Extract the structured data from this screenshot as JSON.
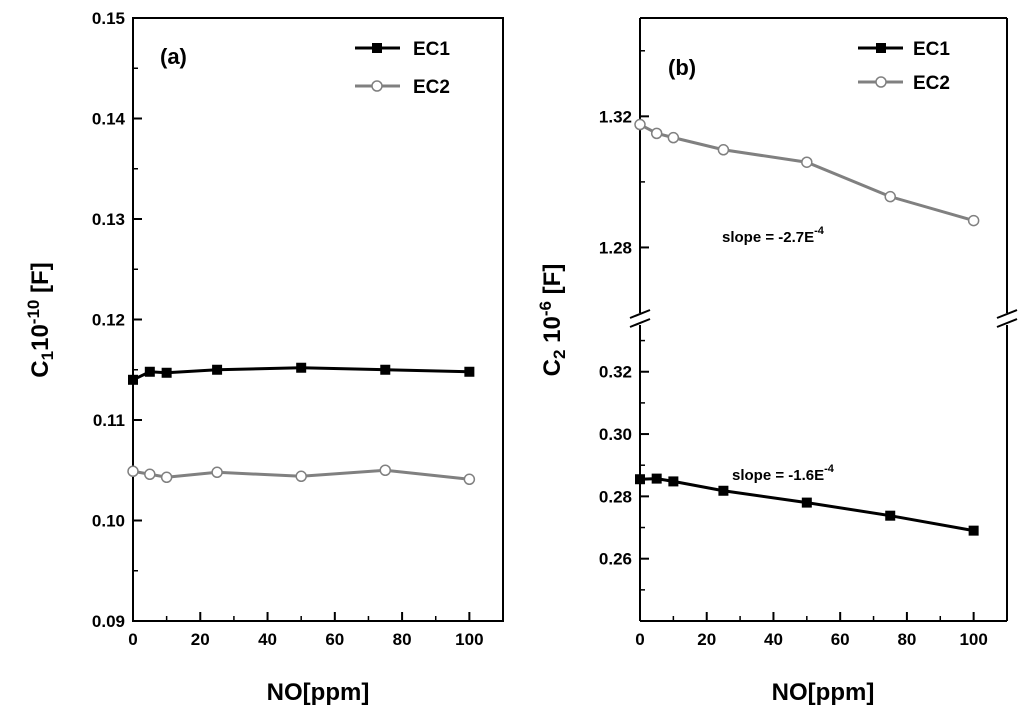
{
  "chart_data": [
    {
      "type": "line",
      "panel_label": "(a)",
      "xlabel": "NO[ppm]",
      "ylabel": {
        "base": "C",
        "sub": "1",
        "mid": "10",
        "sup": "-10",
        "unit": " [F]"
      },
      "xlim": [
        0,
        110
      ],
      "ylim": [
        0.09,
        0.15
      ],
      "x_ticks": [
        "0",
        "20",
        "40",
        "60",
        "80",
        "100"
      ],
      "y_ticks": [
        "0.09",
        "0.10",
        "0.11",
        "0.12",
        "0.13",
        "0.14",
        "0.15"
      ],
      "x": [
        0,
        5,
        10,
        25,
        50,
        75,
        100
      ],
      "series": [
        {
          "name": "EC1",
          "values": [
            0.114,
            0.1148,
            0.1147,
            0.115,
            0.1152,
            0.115,
            0.1148
          ],
          "color": "#000000",
          "marker": "filled-square"
        },
        {
          "name": "EC2",
          "values": [
            0.1049,
            0.1046,
            0.1043,
            0.1048,
            0.1044,
            0.105,
            0.1041
          ],
          "color": "#808080",
          "marker": "open-circle"
        }
      ],
      "legend": "top-right"
    },
    {
      "type": "line",
      "panel_label": "(b)",
      "xlabel": "NO[ppm]",
      "ylabel": {
        "base": "C",
        "sub": "2",
        "mid": " 10",
        "sup": "-6",
        "unit": " [F]"
      },
      "xlim": [
        0,
        110
      ],
      "broken_y_axis": true,
      "upper_ylim": [
        1.26,
        1.35
      ],
      "lower_ylim": [
        0.24,
        0.335
      ],
      "upper_y_ticks": [
        "1.28",
        "1.32"
      ],
      "lower_y_ticks": [
        "0.26",
        "0.28",
        "0.30",
        "0.32"
      ],
      "x_ticks": [
        "0",
        "20",
        "40",
        "60",
        "80",
        "100"
      ],
      "x": [
        0,
        5,
        10,
        25,
        50,
        75,
        100
      ],
      "series": [
        {
          "name": "EC1",
          "values": [
            0.2855,
            0.2857,
            0.2848,
            0.2818,
            0.278,
            0.2738,
            0.269
          ],
          "color": "#000000",
          "marker": "filled-square",
          "axis": "lower"
        },
        {
          "name": "EC2",
          "values": [
            1.3175,
            1.3148,
            1.3135,
            1.3098,
            1.306,
            1.2955,
            1.2882
          ],
          "color": "#808080",
          "marker": "open-circle",
          "axis": "upper"
        }
      ],
      "annotations": [
        {
          "text": "slope = -2.7E",
          "sup": "-4",
          "near": "EC2"
        },
        {
          "text": "slope = -1.6E",
          "sup": "-4",
          "near": "EC1"
        }
      ],
      "legend": "top-right"
    }
  ]
}
